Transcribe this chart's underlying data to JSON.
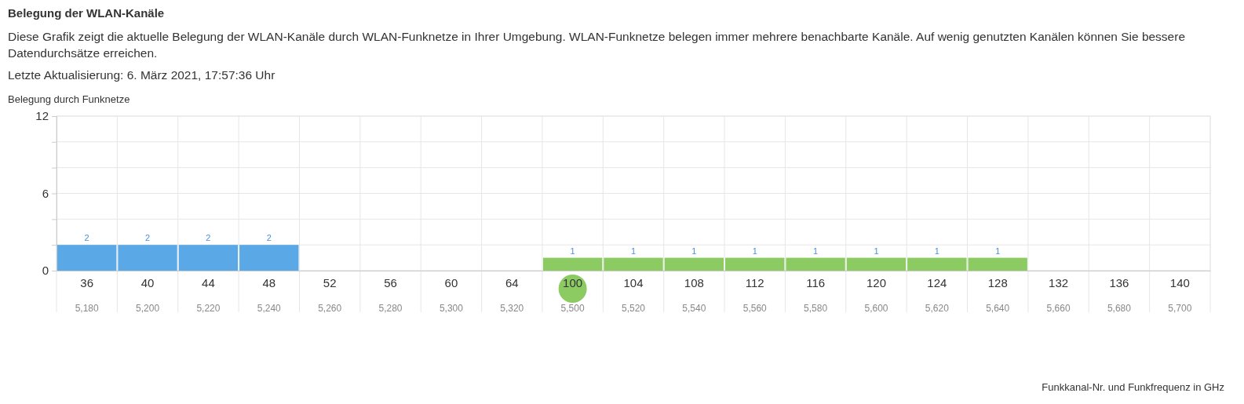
{
  "chart_data": {
    "type": "bar",
    "title": "Belegung der WLAN-Kanäle",
    "subtitle": "Diese Grafik zeigt die aktuelle Belegung der WLAN-Kanäle durch WLAN-Funknetze in Ihrer Umgebung. WLAN-Funknetze belegen immer mehrere benachbarte Kanäle. Auf wenig genutzten Kanälen können Sie bessere Datendurchsätze erreichen.",
    "ylabel": "Belegung durch Funknetze",
    "annotations": [
      "Letzte Aktualisierung: 6. März 2021, 17:57:36 Uhr",
      "Funkkanal-Nr. und Funkfrequenz in GHz",
      "5,180",
      "5,200",
      "5,220",
      "5,240",
      "5,260",
      "5,280",
      "5,300",
      "5,320",
      "5,500",
      "5,520",
      "5,540",
      "5,560",
      "5,580",
      "5,600",
      "5,620",
      "5,640",
      "5,660",
      "5,680",
      "5,700"
    ],
    "categories": [
      "36",
      "40",
      "44",
      "48",
      "52",
      "56",
      "60",
      "64",
      "100",
      "104",
      "108",
      "112",
      "116",
      "120",
      "124",
      "128",
      "132",
      "136",
      "140"
    ],
    "series": [
      {
        "color": "#5aa9e6",
        "values": [
          2,
          2,
          2,
          2,
          null,
          null,
          null,
          null,
          null,
          null,
          null,
          null,
          null,
          null,
          null,
          null,
          null,
          null,
          null
        ]
      },
      {
        "color": "#8ccb62",
        "values": [
          null,
          null,
          null,
          null,
          null,
          null,
          null,
          null,
          1,
          1,
          1,
          1,
          1,
          1,
          1,
          1,
          null,
          null,
          null
        ]
      }
    ],
    "ylim": [
      0,
      12
    ],
    "yticks": [
      0,
      {
        "value": 2,
        "label": null
      },
      {
        "value": 4,
        "label": null
      },
      6,
      {
        "value": 8,
        "label": null
      },
      {
        "value": 10,
        "label": null
      },
      12
    ],
    "grid": true,
    "data_labels": true
  }
}
